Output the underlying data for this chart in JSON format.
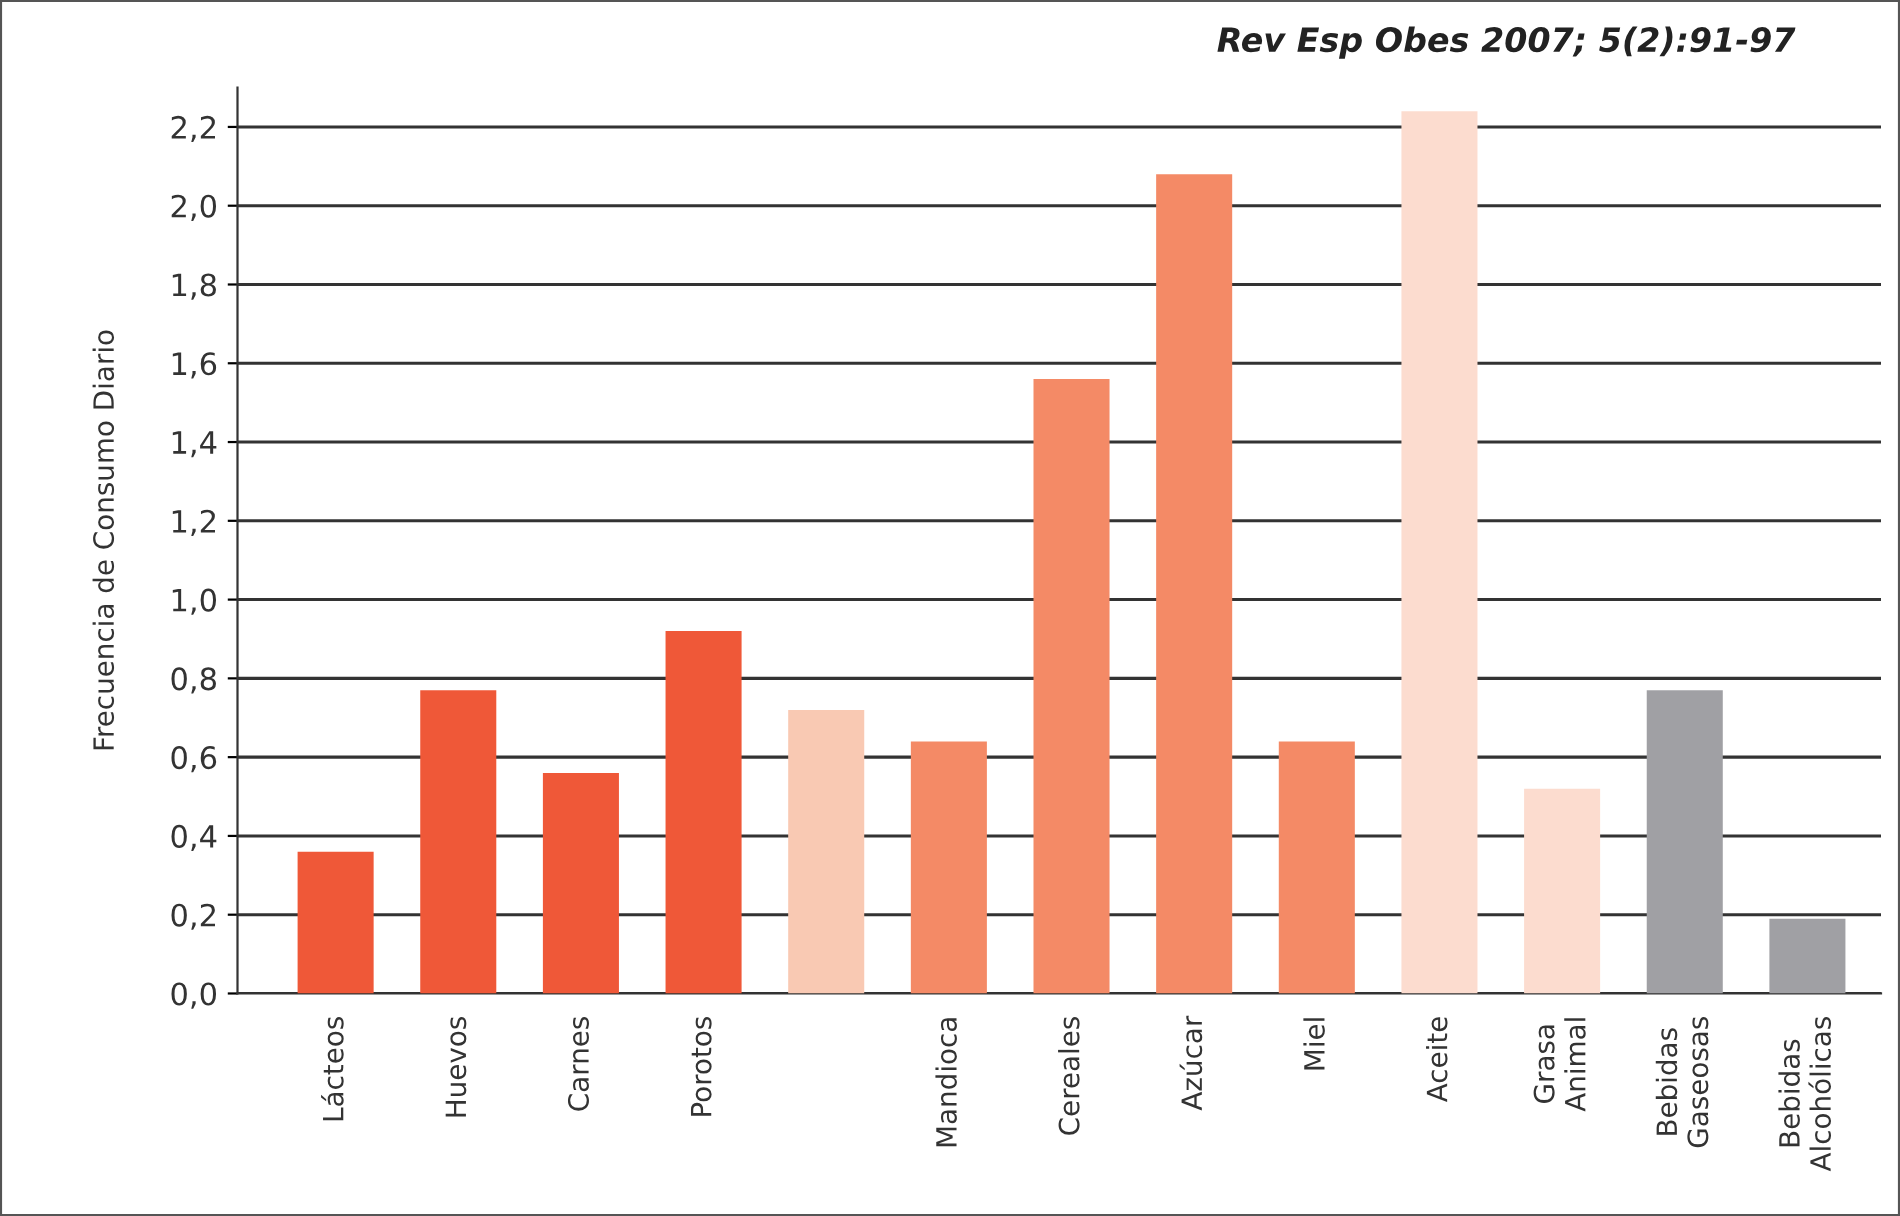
{
  "chart_data": {
    "type": "bar",
    "annotations": [
      "Rev Esp Obes 2007; 5(2):91-97"
    ],
    "ylabel": "Frecuencia de Consumo Diario",
    "categories": [
      "Lácteos",
      "Huevos",
      "Carnes",
      "Porotos",
      null,
      "Mandioca",
      "Cereales",
      "Azúcar",
      "Miel",
      "Aceite",
      "Grasa\nAnimal",
      "Bebidas\nGaseosas",
      "Bebidas\nAlcohólicas"
    ],
    "values": [
      0.36,
      0.77,
      0.56,
      0.92,
      0.72,
      0.64,
      1.56,
      2.08,
      0.64,
      2.24,
      0.52,
      0.77,
      0.19
    ],
    "colors": [
      "#ef5838",
      "#ef5838",
      "#ef5838",
      "#ef5838",
      "#f9c9b3",
      "#f48a66",
      "#f48a66",
      "#f48a66",
      "#f48a66",
      "#fcdccf",
      "#fcdccf",
      "#a0a0a4",
      "#a0a0a4"
    ],
    "ylim": [
      0,
      2.3
    ],
    "yticks": [
      {
        "value": 0,
        "label": "0,0"
      },
      {
        "value": 0.2,
        "label": "0,2"
      },
      {
        "value": 0.4,
        "label": "0,4"
      },
      {
        "value": 0.6,
        "label": "0,6"
      },
      {
        "value": 0.8,
        "label": "0,8"
      },
      {
        "value": 1.0,
        "label": "1,0"
      },
      {
        "value": 1.2,
        "label": "1,2"
      },
      {
        "value": 1.4,
        "label": "1,4"
      },
      {
        "value": 1.6,
        "label": "1,6"
      },
      {
        "value": 1.8,
        "label": "1,8"
      },
      {
        "value": 2.0,
        "label": "2,0"
      },
      {
        "value": 2.2,
        "label": "2,2"
      }
    ],
    "grid": "y"
  }
}
